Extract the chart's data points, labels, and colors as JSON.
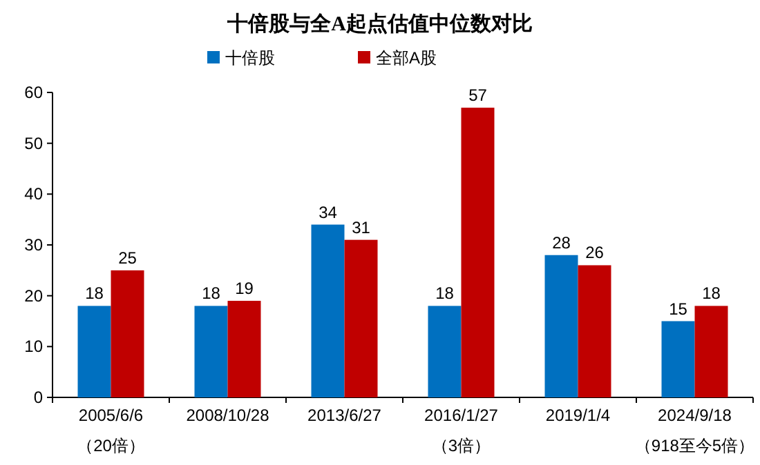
{
  "chart_data": {
    "type": "bar",
    "title": "十倍股与全A起点估值中位数对比",
    "categories": [
      "2005/6/6\n（20倍）",
      "2008/10/28",
      "2013/6/27",
      "2016/1/27\n（3倍）",
      "2019/1/4",
      "2024/9/18\n（918至今5倍）"
    ],
    "series": [
      {
        "name": "十倍股",
        "color": "#0070c0",
        "values": [
          18,
          18,
          34,
          18,
          28,
          15
        ]
      },
      {
        "name": "全部A股",
        "color": "#c00000",
        "values": [
          25,
          19,
          31,
          57,
          26,
          18
        ]
      }
    ],
    "ylim": [
      0,
      60
    ],
    "yticks": [
      0,
      10,
      20,
      30,
      40,
      50,
      60
    ],
    "data_labels": true,
    "legend": "top"
  }
}
